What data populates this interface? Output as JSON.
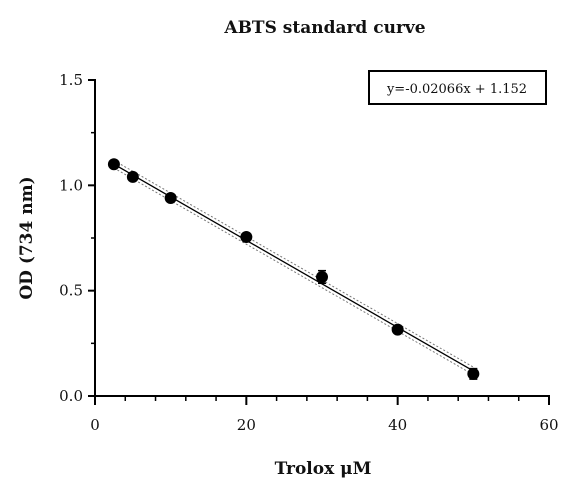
{
  "chart_data": {
    "type": "scatter",
    "title": "ABTS standard curve",
    "xlabel": "Trolox μM",
    "ylabel": "OD (734 nm)",
    "xlim": [
      0,
      60
    ],
    "ylim": [
      0.0,
      1.5
    ],
    "x_ticks": [
      "0",
      "20",
      "40",
      "60"
    ],
    "y_ticks": [
      "0.0",
      "0.5",
      "1.0",
      "1.5"
    ],
    "grid": false,
    "annotation": "y=-0.02066x + 1.152",
    "annotation_position": "top-right",
    "regression": {
      "slope": -0.02066,
      "intercept": 1.152,
      "x_range": [
        2.5,
        50
      ]
    },
    "series": [
      {
        "x": [
          2.5,
          5,
          10,
          20,
          30,
          40,
          50
        ],
        "y": [
          1.1,
          1.04,
          0.94,
          0.755,
          0.565,
          0.315,
          0.105
        ],
        "error": [
          0.01,
          0.01,
          0.01,
          0.015,
          0.03,
          0.01,
          0.025
        ]
      }
    ],
    "colors": {
      "marker": "#000000",
      "line": "#000000",
      "confidence": "#777777"
    }
  }
}
